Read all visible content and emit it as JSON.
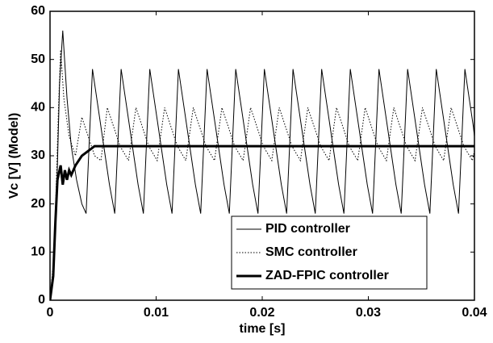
{
  "chart_data": {
    "type": "line",
    "xlabel": "time [s]",
    "ylabel": "Vc [V] (Model)",
    "xlim": [
      0,
      0.04
    ],
    "xticks": [
      0,
      0.01,
      0.02,
      0.03,
      0.04
    ],
    "ylim": [
      0,
      60
    ],
    "yticks": [
      0,
      10,
      20,
      30,
      40,
      50,
      60
    ],
    "grid": false,
    "legend": "lower center",
    "series": [
      {
        "name": "PID controller",
        "color": "#000000",
        "line_style": "solid",
        "line_width": 1,
        "x": [
          0,
          0.0003,
          0.0006,
          0.0009,
          0.0012,
          0.0016,
          0.002,
          0.0025,
          0.003,
          0.0034,
          0.004,
          0.0044,
          0.0048,
          0.0052,
          0.0056,
          0.0061,
          0.0067,
          0.0071,
          0.0075,
          0.0079,
          0.0083,
          0.0088,
          0.0094,
          0.0098,
          0.0102,
          0.0106,
          0.011,
          0.0115,
          0.0121,
          0.0125,
          0.0129,
          0.0133,
          0.0137,
          0.0142,
          0.0148,
          0.0152,
          0.0156,
          0.016,
          0.0164,
          0.0169,
          0.0175,
          0.0179,
          0.0183,
          0.0187,
          0.0191,
          0.0196,
          0.0202,
          0.0206,
          0.021,
          0.0214,
          0.0218,
          0.0223,
          0.0229,
          0.0233,
          0.0237,
          0.0241,
          0.0245,
          0.025,
          0.0256,
          0.026,
          0.0264,
          0.0268,
          0.0272,
          0.0277,
          0.0283,
          0.0287,
          0.0291,
          0.0295,
          0.0299,
          0.0304,
          0.031,
          0.0314,
          0.0318,
          0.0322,
          0.0326,
          0.0331,
          0.0337,
          0.0341,
          0.0345,
          0.0349,
          0.0353,
          0.0358,
          0.0364,
          0.0368,
          0.0372,
          0.0376,
          0.038,
          0.0385,
          0.0391,
          0.0395,
          0.0399,
          0.04
        ],
        "values": [
          0,
          5,
          20,
          45,
          56,
          42,
          32,
          25,
          20,
          18,
          48,
          42,
          36,
          30,
          24,
          18,
          48,
          42,
          36,
          30,
          24,
          18,
          48,
          42,
          36,
          30,
          24,
          18,
          48,
          42,
          36,
          30,
          24,
          18,
          48,
          42,
          36,
          30,
          24,
          18,
          48,
          42,
          36,
          30,
          24,
          18,
          48,
          42,
          36,
          30,
          24,
          18,
          48,
          42,
          36,
          30,
          24,
          18,
          48,
          42,
          36,
          30,
          24,
          18,
          48,
          42,
          36,
          30,
          24,
          18,
          48,
          42,
          36,
          30,
          24,
          18,
          48,
          42,
          36,
          30,
          24,
          18,
          48,
          42,
          36,
          30,
          24,
          18,
          48,
          42,
          36,
          34
        ]
      },
      {
        "name": "SMC controller",
        "color": "#000000",
        "line_style": "dotted",
        "line_width": 1,
        "x": [
          0,
          0.0004,
          0.0008,
          0.001,
          0.0013,
          0.0018,
          0.0024,
          0.003,
          0.0036,
          0.0042,
          0.0048,
          0.0054,
          0.006,
          0.0066,
          0.0074,
          0.0081,
          0.0087,
          0.0093,
          0.0101,
          0.0108,
          0.0114,
          0.012,
          0.0128,
          0.0135,
          0.0141,
          0.0147,
          0.0155,
          0.0162,
          0.0168,
          0.0174,
          0.0182,
          0.0189,
          0.0195,
          0.0201,
          0.0209,
          0.0216,
          0.0222,
          0.0228,
          0.0236,
          0.0243,
          0.0249,
          0.0255,
          0.0263,
          0.027,
          0.0276,
          0.0282,
          0.029,
          0.0297,
          0.0303,
          0.0309,
          0.0317,
          0.0324,
          0.033,
          0.0336,
          0.0344,
          0.0351,
          0.0357,
          0.0363,
          0.0371,
          0.0378,
          0.0384,
          0.039,
          0.0398,
          0.04
        ],
        "values": [
          0,
          10,
          40,
          52,
          42,
          34,
          30,
          38,
          34,
          30,
          29,
          40,
          36,
          32,
          29,
          40,
          36,
          32,
          29,
          40,
          36,
          32,
          29,
          40,
          36,
          32,
          29,
          40,
          36,
          32,
          29,
          40,
          36,
          32,
          29,
          40,
          36,
          32,
          29,
          40,
          36,
          32,
          29,
          40,
          36,
          32,
          29,
          40,
          36,
          32,
          29,
          40,
          36,
          32,
          29,
          40,
          36,
          32,
          29,
          40,
          36,
          32,
          29,
          31
        ]
      },
      {
        "name": "ZAD-FPIC controller",
        "color": "#000000",
        "line_style": "solid",
        "line_width": 3,
        "x": [
          0,
          0.0003,
          0.0005,
          0.0007,
          0.0009,
          0.001,
          0.0012,
          0.0014,
          0.0016,
          0.0018,
          0.002,
          0.0024,
          0.003,
          0.0036,
          0.0042,
          0.006,
          0.04
        ],
        "values": [
          0,
          5,
          16,
          25,
          27,
          28,
          24,
          27,
          25,
          27,
          26,
          28,
          30,
          31,
          32,
          32,
          32
        ]
      }
    ]
  }
}
